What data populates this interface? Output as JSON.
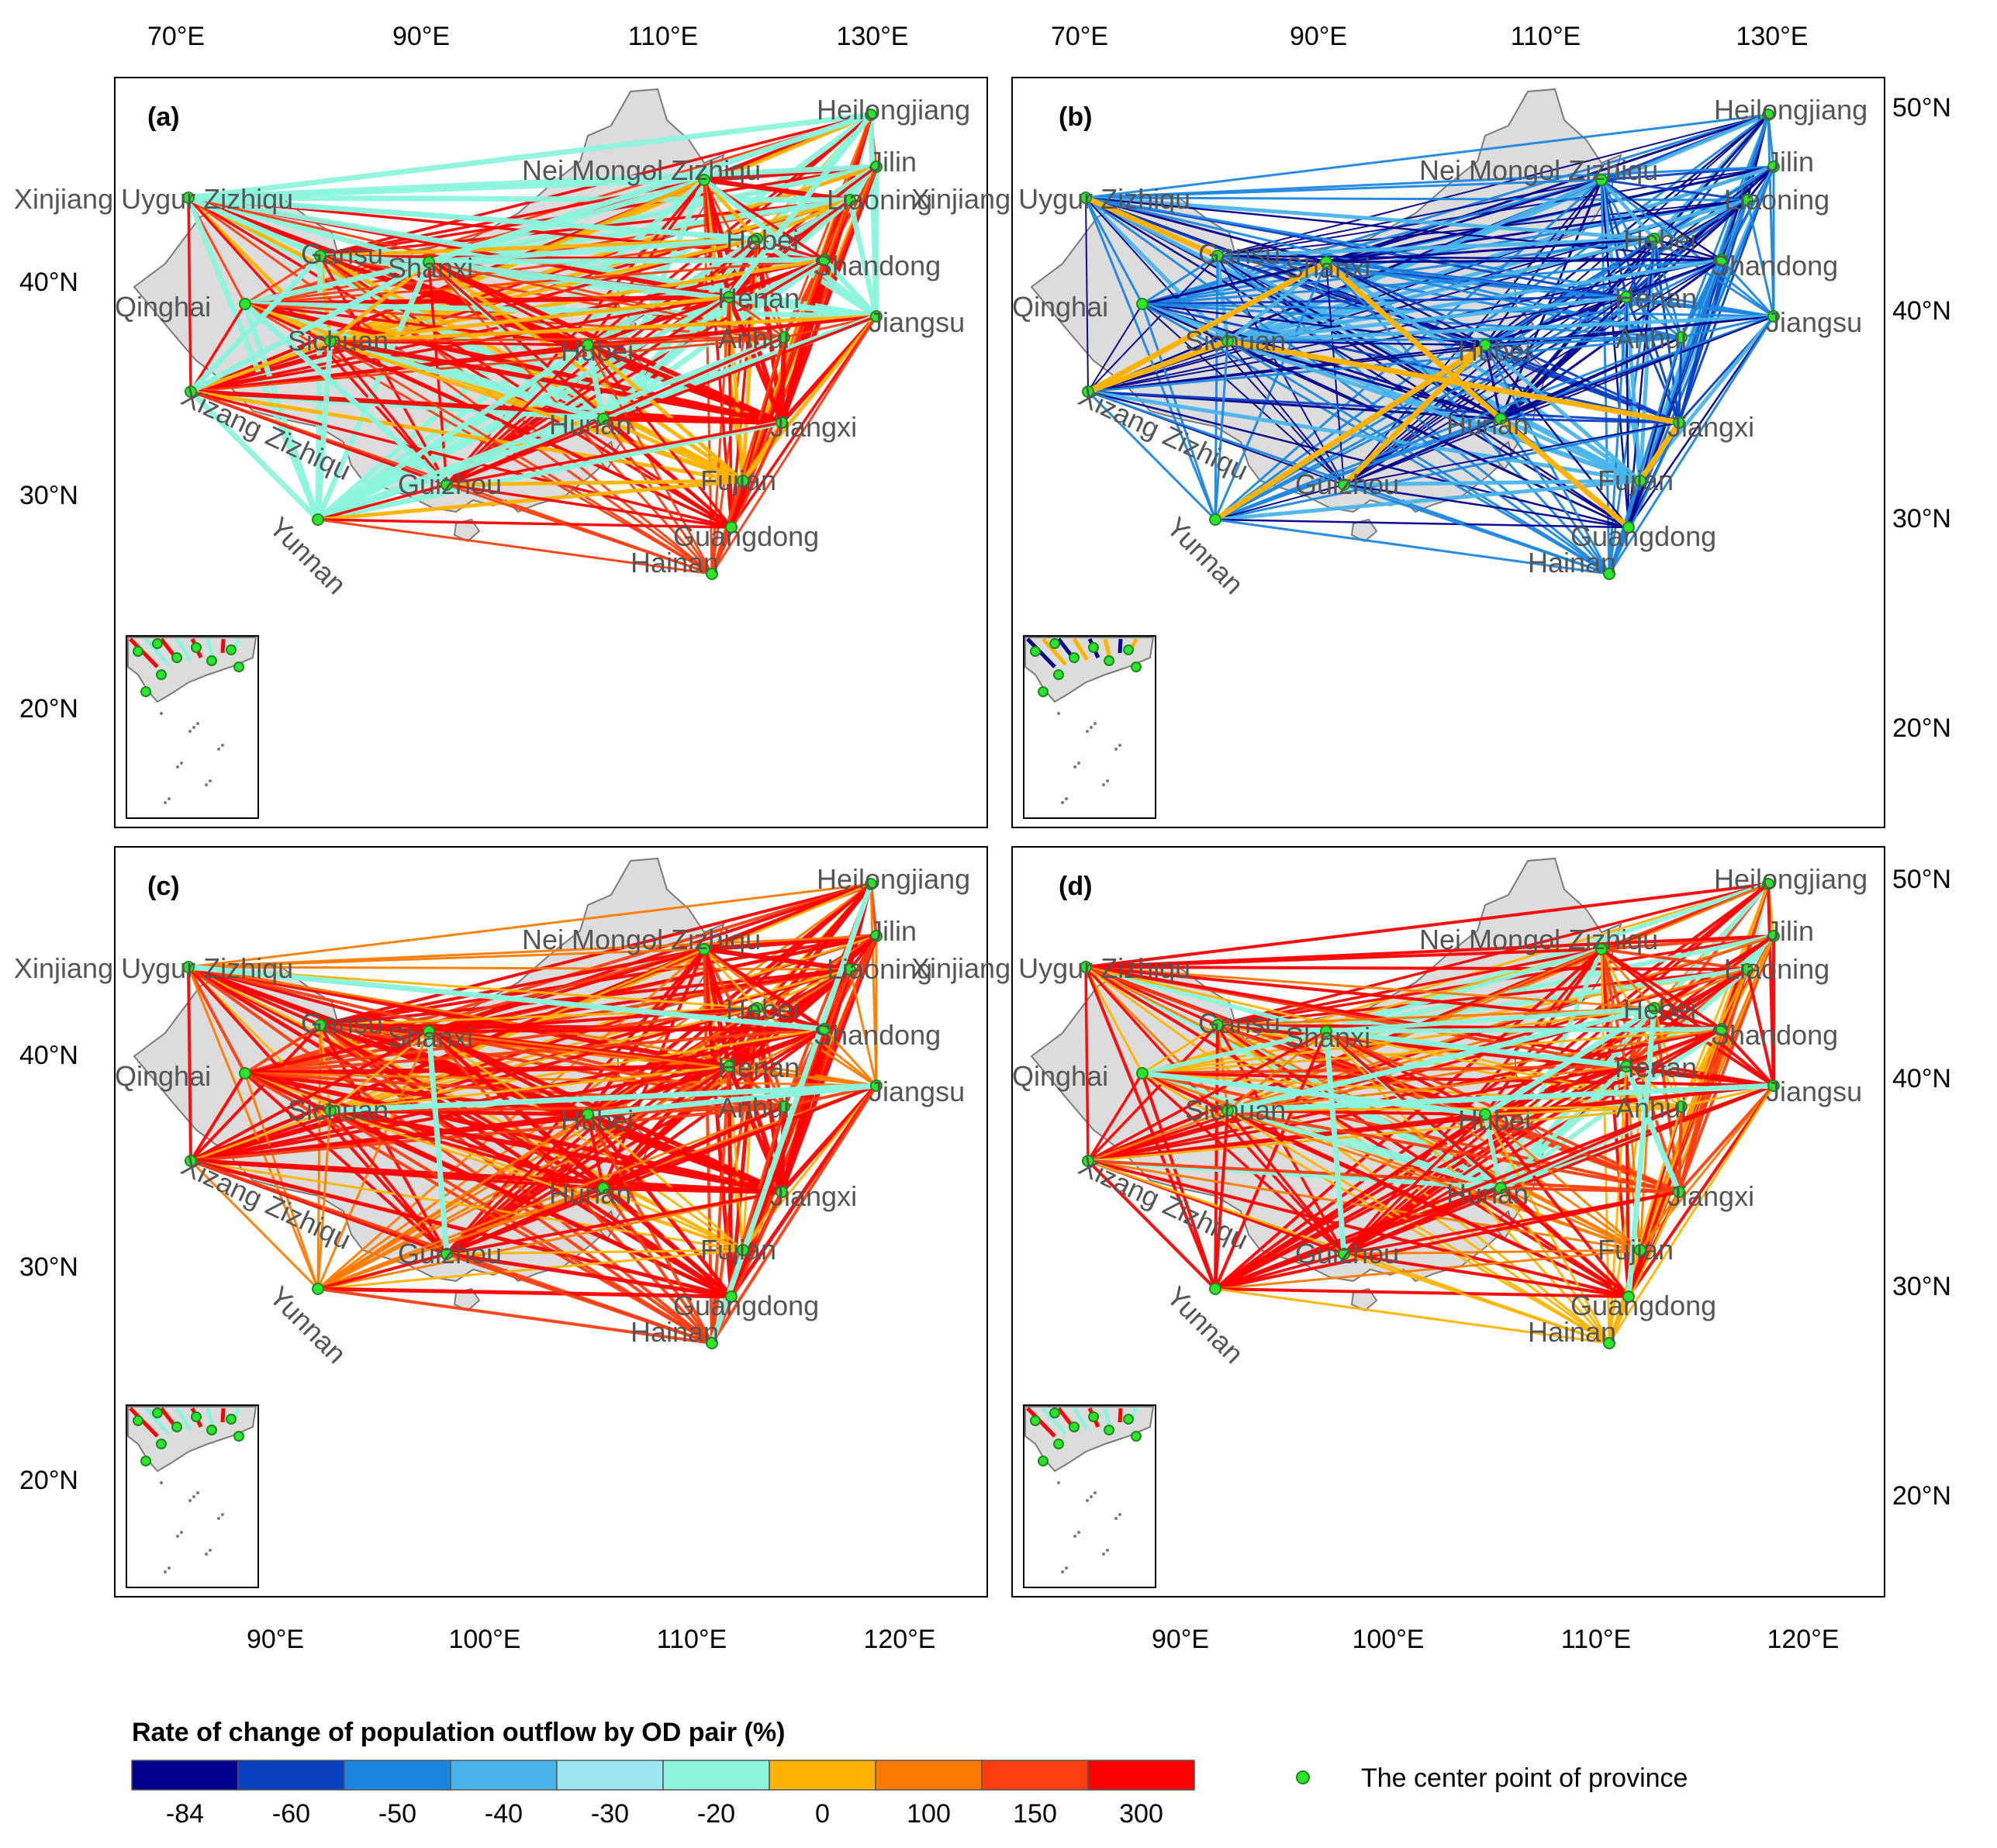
{
  "figure": {
    "top_lon_ticks": [
      "70°E",
      "90°E",
      "110°E",
      "130°E"
    ],
    "bottom_lon_ticks": [
      "90°E",
      "100°E",
      "110°E",
      "120°E"
    ],
    "left_lat_ticks": [
      "40°N",
      "30°N",
      "20°N"
    ],
    "right_lat_ticks": [
      "50°N",
      "40°N",
      "30°N",
      "20°N"
    ]
  },
  "provinces": [
    {
      "name": "Heilongjiang"
    },
    {
      "name": "Jilin"
    },
    {
      "name": "Liaoning"
    },
    {
      "name": "Nei Mongol Zizhiqu"
    },
    {
      "name": "Xinjiang Uygur Zizhiqu"
    },
    {
      "name": "Gansu"
    },
    {
      "name": "Hebei"
    },
    {
      "name": "Shandong"
    },
    {
      "name": "Qinghai"
    },
    {
      "name": "Shanxi"
    },
    {
      "name": "Henan"
    },
    {
      "name": "Jiangsu"
    },
    {
      "name": "Xizang Zizhiqu"
    },
    {
      "name": "Sichuan"
    },
    {
      "name": "Hubei"
    },
    {
      "name": "Anhui"
    },
    {
      "name": "Hunan"
    },
    {
      "name": "Jiangxi"
    },
    {
      "name": "Yunnan"
    },
    {
      "name": "Guizhou"
    },
    {
      "name": "Fujian"
    },
    {
      "name": "Guangdong"
    },
    {
      "name": "Hainan"
    }
  ],
  "panels": [
    {
      "letter": "(a)",
      "scheme": "mixed-a"
    },
    {
      "letter": "(b)",
      "scheme": "blue"
    },
    {
      "letter": "(c)",
      "scheme": "red"
    },
    {
      "letter": "(d)",
      "scheme": "mixed-d"
    }
  ],
  "legend": {
    "title": "Rate of change of population outflow by OD pair (%)",
    "colors": [
      "#00008b",
      "#0a3fc0",
      "#1b86e0",
      "#4ab4ea",
      "#9ce6ef",
      "#8cf4dc",
      "#ffb300",
      "#ff7a00",
      "#ff3d10",
      "#ff0000"
    ],
    "ticks": [
      "-84",
      "-60",
      "-50",
      "-40",
      "-30",
      "-20",
      "0",
      "100",
      "150",
      "300"
    ],
    "point_label": "The center point of province",
    "point_color": "#2ee32e"
  }
}
